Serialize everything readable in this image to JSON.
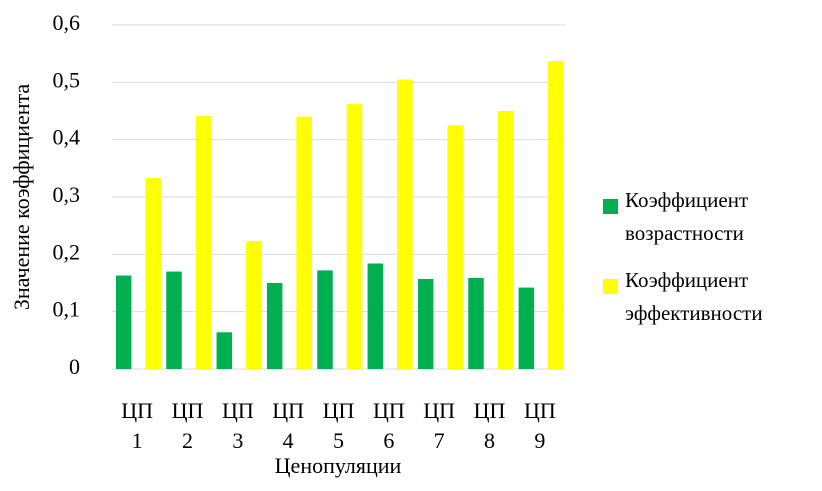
{
  "chart_data": {
    "type": "bar",
    "x_label": "Ценопуляции",
    "y_label": "Значение коэффициента",
    "categories": [
      "ЦП 1",
      "ЦП 2",
      "ЦП 3",
      "ЦП 4",
      "ЦП 5",
      "ЦП 6",
      "ЦП 7",
      "ЦП 8",
      "ЦП 9"
    ],
    "series": [
      {
        "name": "Коэффициент возрастности",
        "color": "#00b050",
        "values": [
          0.163,
          0.17,
          0.064,
          0.15,
          0.172,
          0.184,
          0.157,
          0.159,
          0.142
        ]
      },
      {
        "name": "Коэффициент эффективности",
        "color": "#ffff00",
        "values": [
          0.333,
          0.441,
          0.223,
          0.44,
          0.462,
          0.505,
          0.425,
          0.45,
          0.537
        ]
      }
    ],
    "ylim": [
      0,
      0.6
    ],
    "yticks": [
      0,
      {
        "value": 0.1,
        "label": "0,1"
      },
      {
        "value": 0.2,
        "label": "0,2"
      },
      {
        "value": 0.3,
        "label": "0,3"
      },
      {
        "value": 0.4,
        "label": "0,4"
      },
      {
        "value": 0.5,
        "label": "0,5"
      },
      {
        "value": 0.6,
        "label": "0,6"
      }
    ],
    "grid": true,
    "legend": "right"
  }
}
